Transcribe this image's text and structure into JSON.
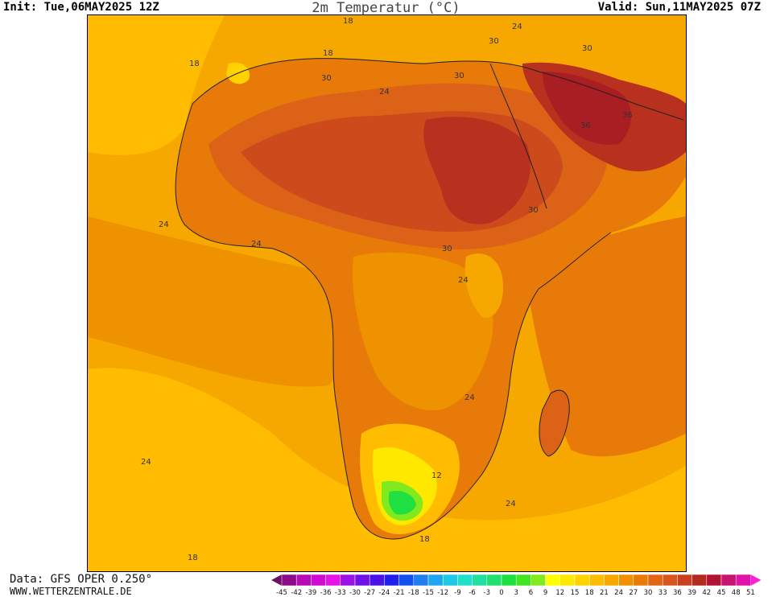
{
  "header": {
    "init": "Init: Tue,06MAY2025 12Z",
    "title": "2m Temperatur (°C)",
    "valid": "Valid: Sun,11MAY2025 07Z"
  },
  "footer": {
    "source": "Data: GFS OPER 0.250°",
    "website": "WWW.WETTERZENTRALE.DE"
  },
  "map": {
    "region": "Africa and Arabian Peninsula",
    "variable": "2m air temperature",
    "contour_labels": [
      "18",
      "18",
      "18",
      "30",
      "24",
      "30",
      "30",
      "24",
      "24",
      "30",
      "36",
      "36",
      "24",
      "30",
      "30",
      "24",
      "24",
      "24",
      "24",
      "12",
      "24",
      "18",
      "18"
    ]
  },
  "legend": {
    "ticks": [
      "-45",
      "-42",
      "-39",
      "-36",
      "-33",
      "-30",
      "-27",
      "-24",
      "-21",
      "-18",
      "-15",
      "-12",
      "-9",
      "-6",
      "-3",
      "0",
      "3",
      "6",
      "9",
      "12",
      "15",
      "18",
      "21",
      "24",
      "27",
      "30",
      "33",
      "36",
      "39",
      "42",
      "45",
      "48",
      "51"
    ],
    "colors": [
      "#6b0f60",
      "#8d0b8a",
      "#b40bb4",
      "#d10bd1",
      "#e712e7",
      "#9a12e6",
      "#6f12e6",
      "#4a12e6",
      "#1f1fee",
      "#1350ee",
      "#1f7ef0",
      "#1fa6f0",
      "#1fc8e6",
      "#1fe0c8",
      "#1fe0a0",
      "#1fe070",
      "#1fe040",
      "#40e61f",
      "#80ea1f",
      "#ffff00",
      "#ffe800",
      "#ffd200",
      "#ffbc00",
      "#f7a800",
      "#f09000",
      "#ea7a08",
      "#e06614",
      "#d8561e",
      "#c8401e",
      "#b42a1e",
      "#b01432",
      "#c8146e",
      "#e014a8",
      "#ff1fd2"
    ]
  },
  "colors": {
    "t18": "#ffbc00",
    "t21": "#f7a800",
    "t24": "#ee9200",
    "t27": "#e87a0a",
    "t30": "#dc6218",
    "t33": "#cc4a1c",
    "t36": "#b8301e",
    "t39": "#a81e22",
    "t12": "#ffe800",
    "t9": "#ffff00",
    "t6": "#40e61f",
    "t3": "#1fe040"
  }
}
